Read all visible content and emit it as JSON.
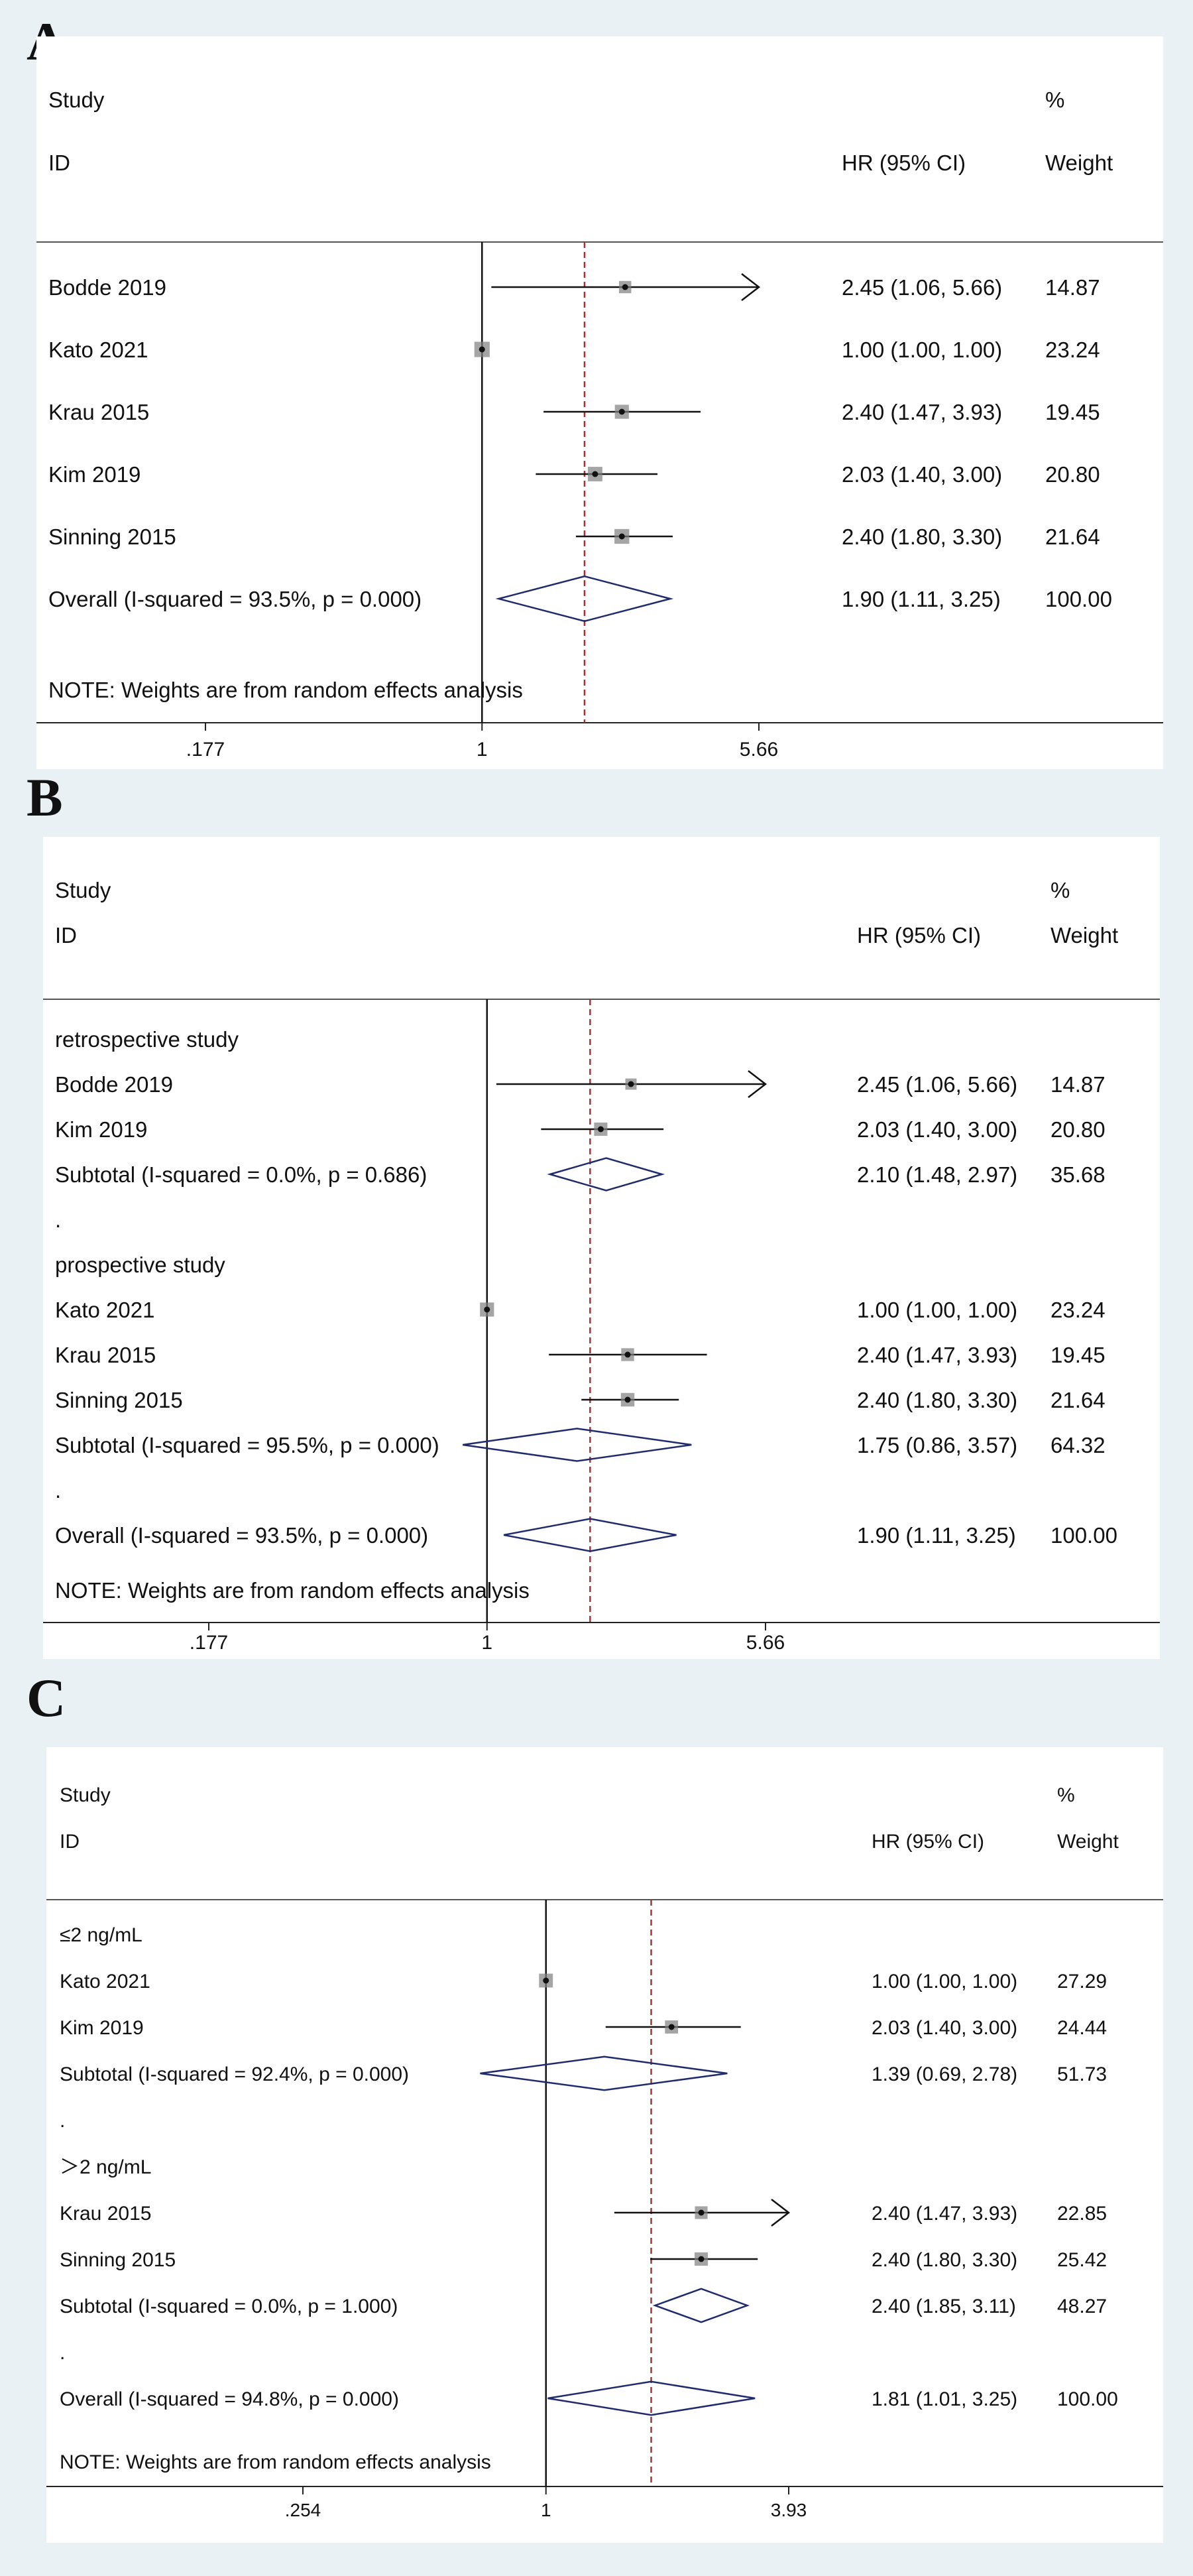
{
  "figure": {
    "background": "#e9f1f5",
    "marker_color": "#7f7f7f",
    "diamond_color": "#1f2b6b",
    "overall_line_color": "#b03030"
  },
  "panels": [
    {
      "label": "A",
      "headers": {
        "study": "Study",
        "id": "ID",
        "hr": "HR (95% CI)",
        "pct": "%",
        "weight": "Weight"
      },
      "note": "NOTE: Weights are from random effects analysis",
      "overall_hr": 1.9
    },
    {
      "label": "B",
      "headers": {
        "study": "Study",
        "id": "ID",
        "hr": "HR (95% CI)",
        "pct": "%",
        "weight": "Weight"
      },
      "note": "NOTE: Weights are from random effects analysis",
      "overall_hr": 1.9
    },
    {
      "label": "C",
      "headers": {
        "study": "Study",
        "id": "ID",
        "hr": "HR (95% CI)",
        "pct": "%",
        "weight": "Weight"
      },
      "note": "NOTE: Weights are from random effects analysis",
      "overall_hr": 1.81
    }
  ],
  "chart_data": [
    {
      "type": "forest",
      "title": "A",
      "xscale": "log",
      "xlim": [
        0.177,
        5.66
      ],
      "ticks": [
        ".177",
        "1",
        "5.66"
      ],
      "tick_values": [
        0.177,
        1,
        5.66
      ],
      "rows": [
        {
          "kind": "study",
          "label": "Bodde 2019",
          "hr": 2.45,
          "lo": 1.06,
          "hi": 5.66,
          "ci_text": "2.45 (1.06, 5.66)",
          "weight": "14.87",
          "arrow": true
        },
        {
          "kind": "study",
          "label": "Kato 2021",
          "hr": 1.0,
          "lo": 1.0,
          "hi": 1.0,
          "ci_text": "1.00 (1.00, 1.00)",
          "weight": "23.24"
        },
        {
          "kind": "study",
          "label": "Krau 2015",
          "hr": 2.4,
          "lo": 1.47,
          "hi": 3.93,
          "ci_text": "2.40 (1.47, 3.93)",
          "weight": "19.45"
        },
        {
          "kind": "study",
          "label": "Kim 2019",
          "hr": 2.03,
          "lo": 1.4,
          "hi": 3.0,
          "ci_text": "2.03 (1.40, 3.00)",
          "weight": "20.80"
        },
        {
          "kind": "study",
          "label": "Sinning 2015",
          "hr": 2.4,
          "lo": 1.8,
          "hi": 3.3,
          "ci_text": "2.40 (1.80, 3.30)",
          "weight": "21.64"
        },
        {
          "kind": "overall",
          "label": "Overall  (I-squared = 93.5%, p = 0.000)",
          "hr": 1.9,
          "lo": 1.11,
          "hi": 3.25,
          "ci_text": "1.90 (1.11, 3.25)",
          "weight": "100.00"
        }
      ]
    },
    {
      "type": "forest",
      "title": "B",
      "xscale": "log",
      "xlim": [
        0.177,
        5.66
      ],
      "ticks": [
        ".177",
        "1",
        "5.66"
      ],
      "tick_values": [
        0.177,
        1,
        5.66
      ],
      "rows": [
        {
          "kind": "group",
          "label": "retrospective study"
        },
        {
          "kind": "study",
          "label": "Bodde 2019",
          "hr": 2.45,
          "lo": 1.06,
          "hi": 5.66,
          "ci_text": "2.45 (1.06, 5.66)",
          "weight": "14.87",
          "arrow": true
        },
        {
          "kind": "study",
          "label": "Kim 2019",
          "hr": 2.03,
          "lo": 1.4,
          "hi": 3.0,
          "ci_text": "2.03 (1.40, 3.00)",
          "weight": "20.80"
        },
        {
          "kind": "subtotal",
          "label": "Subtotal  (I-squared = 0.0%, p = 0.686)",
          "hr": 2.1,
          "lo": 1.48,
          "hi": 2.97,
          "ci_text": "2.10 (1.48, 2.97)",
          "weight": "35.68"
        },
        {
          "kind": "spacer",
          "label": "."
        },
        {
          "kind": "group",
          "label": "prospective study"
        },
        {
          "kind": "study",
          "label": "Kato 2021",
          "hr": 1.0,
          "lo": 1.0,
          "hi": 1.0,
          "ci_text": "1.00 (1.00, 1.00)",
          "weight": "23.24"
        },
        {
          "kind": "study",
          "label": "Krau 2015",
          "hr": 2.4,
          "lo": 1.47,
          "hi": 3.93,
          "ci_text": "2.40 (1.47, 3.93)",
          "weight": "19.45"
        },
        {
          "kind": "study",
          "label": "Sinning 2015",
          "hr": 2.4,
          "lo": 1.8,
          "hi": 3.3,
          "ci_text": "2.40 (1.80, 3.30)",
          "weight": "21.64"
        },
        {
          "kind": "subtotal",
          "label": "Subtotal  (I-squared = 95.5%, p = 0.000)",
          "hr": 1.75,
          "lo": 0.86,
          "hi": 3.57,
          "ci_text": "1.75 (0.86, 3.57)",
          "weight": "64.32"
        },
        {
          "kind": "spacer",
          "label": "."
        },
        {
          "kind": "overall",
          "label": "Overall  (I-squared = 93.5%, p = 0.000)",
          "hr": 1.9,
          "lo": 1.11,
          "hi": 3.25,
          "ci_text": "1.90 (1.11, 3.25)",
          "weight": "100.00"
        }
      ]
    },
    {
      "type": "forest",
      "title": "C",
      "xscale": "log",
      "xlim": [
        0.254,
        3.93
      ],
      "ticks": [
        ".254",
        "1",
        "3.93"
      ],
      "tick_values": [
        0.254,
        1,
        3.93
      ],
      "rows": [
        {
          "kind": "group",
          "label": "≤2 ng/mL"
        },
        {
          "kind": "study",
          "label": "Kato 2021",
          "hr": 1.0,
          "lo": 1.0,
          "hi": 1.0,
          "ci_text": "1.00 (1.00, 1.00)",
          "weight": "27.29"
        },
        {
          "kind": "study",
          "label": "Kim 2019",
          "hr": 2.03,
          "lo": 1.4,
          "hi": 3.0,
          "ci_text": "2.03 (1.40, 3.00)",
          "weight": "24.44"
        },
        {
          "kind": "subtotal",
          "label": "Subtotal  (I-squared = 92.4%, p = 0.000)",
          "hr": 1.39,
          "lo": 0.69,
          "hi": 2.78,
          "ci_text": "1.39 (0.69, 2.78)",
          "weight": "51.73"
        },
        {
          "kind": "spacer",
          "label": "."
        },
        {
          "kind": "group",
          "label": "＞2 ng/mL"
        },
        {
          "kind": "study",
          "label": "Krau 2015",
          "hr": 2.4,
          "lo": 1.47,
          "hi": 3.93,
          "ci_text": "2.40 (1.47, 3.93)",
          "weight": "22.85",
          "arrow": true
        },
        {
          "kind": "study",
          "label": "Sinning 2015",
          "hr": 2.4,
          "lo": 1.8,
          "hi": 3.3,
          "ci_text": "2.40 (1.80, 3.30)",
          "weight": "25.42"
        },
        {
          "kind": "subtotal",
          "label": "Subtotal  (I-squared = 0.0%, p = 1.000)",
          "hr": 2.4,
          "lo": 1.85,
          "hi": 3.11,
          "ci_text": "2.40 (1.85, 3.11)",
          "weight": "48.27"
        },
        {
          "kind": "spacer",
          "label": "."
        },
        {
          "kind": "overall",
          "label": "Overall  (I-squared = 94.8%, p = 0.000)",
          "hr": 1.81,
          "lo": 1.01,
          "hi": 3.25,
          "ci_text": "1.81 (1.01, 3.25)",
          "weight": "100.00"
        }
      ]
    }
  ]
}
